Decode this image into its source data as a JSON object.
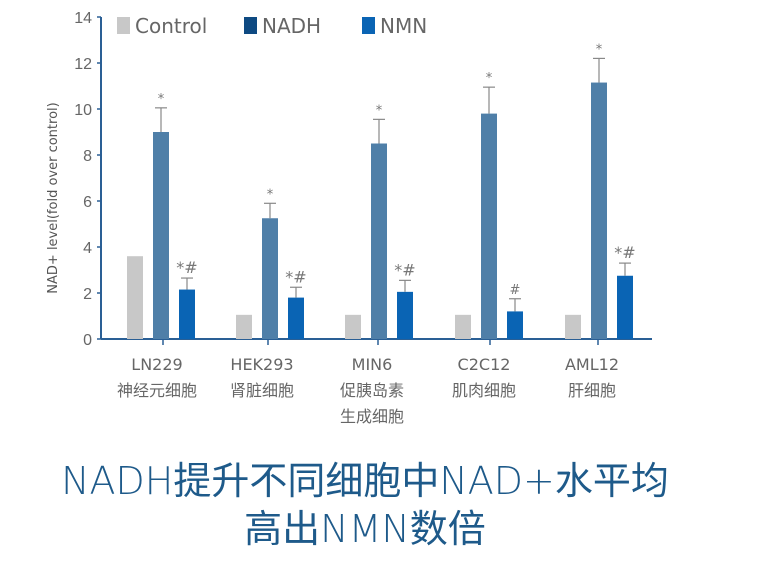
{
  "chart_data": {
    "type": "bar",
    "title": "",
    "xlabel": "",
    "ylabel": "NAD+ level(fold over control)",
    "ylim": [
      0,
      14
    ],
    "yticks": [
      0,
      2,
      4,
      6,
      8,
      10,
      12,
      14
    ],
    "grid": false,
    "legend_placement": "top",
    "categories": [
      {
        "line1": "LN229",
        "line2": "神经元细胞",
        "line3": ""
      },
      {
        "line1": "HEK293",
        "line2": "肾脏细胞",
        "line3": ""
      },
      {
        "line1": "MIN6",
        "line2": "促胰岛素",
        "line3": "生成细胞"
      },
      {
        "line1": "C2C12",
        "line2": "肌肉细胞",
        "line3": ""
      },
      {
        "line1": "AML12",
        "line2": "肝细胞",
        "line3": ""
      }
    ],
    "series": [
      {
        "name": "Control",
        "color": "#c8c8c8",
        "legend_color": "#c8c8c8",
        "values": [
          3.6,
          1.05,
          1.05,
          1.05,
          1.05
        ],
        "error_upper": [
          null,
          null,
          null,
          null,
          null
        ],
        "annotations": [
          "",
          "",
          "",
          "",
          ""
        ]
      },
      {
        "name": "NADH",
        "color": "#4f7fa8",
        "legend_color": "#0e4a82",
        "values": [
          9.0,
          5.25,
          8.5,
          9.8,
          11.15
        ],
        "error_upper": [
          10.05,
          5.9,
          9.55,
          10.95,
          12.2
        ],
        "annotations": [
          "*",
          "*",
          "*",
          "*",
          "*"
        ]
      },
      {
        "name": "NMN",
        "color": "#0a64b4",
        "legend_color": "#0a64b4",
        "values": [
          2.15,
          1.8,
          2.05,
          1.2,
          2.75
        ],
        "error_upper": [
          2.65,
          2.25,
          2.55,
          1.75,
          3.3
        ],
        "annotations": [
          "*#",
          "*#",
          "*#",
          "#",
          "*#"
        ]
      }
    ]
  },
  "caption": {
    "line1": "NADH提升不同细胞中NAD+水平均",
    "line2": "高出NMN数倍"
  },
  "colors": {
    "axis": "#2a5f95",
    "text": "#666666",
    "caption": "#1e5a8a"
  }
}
